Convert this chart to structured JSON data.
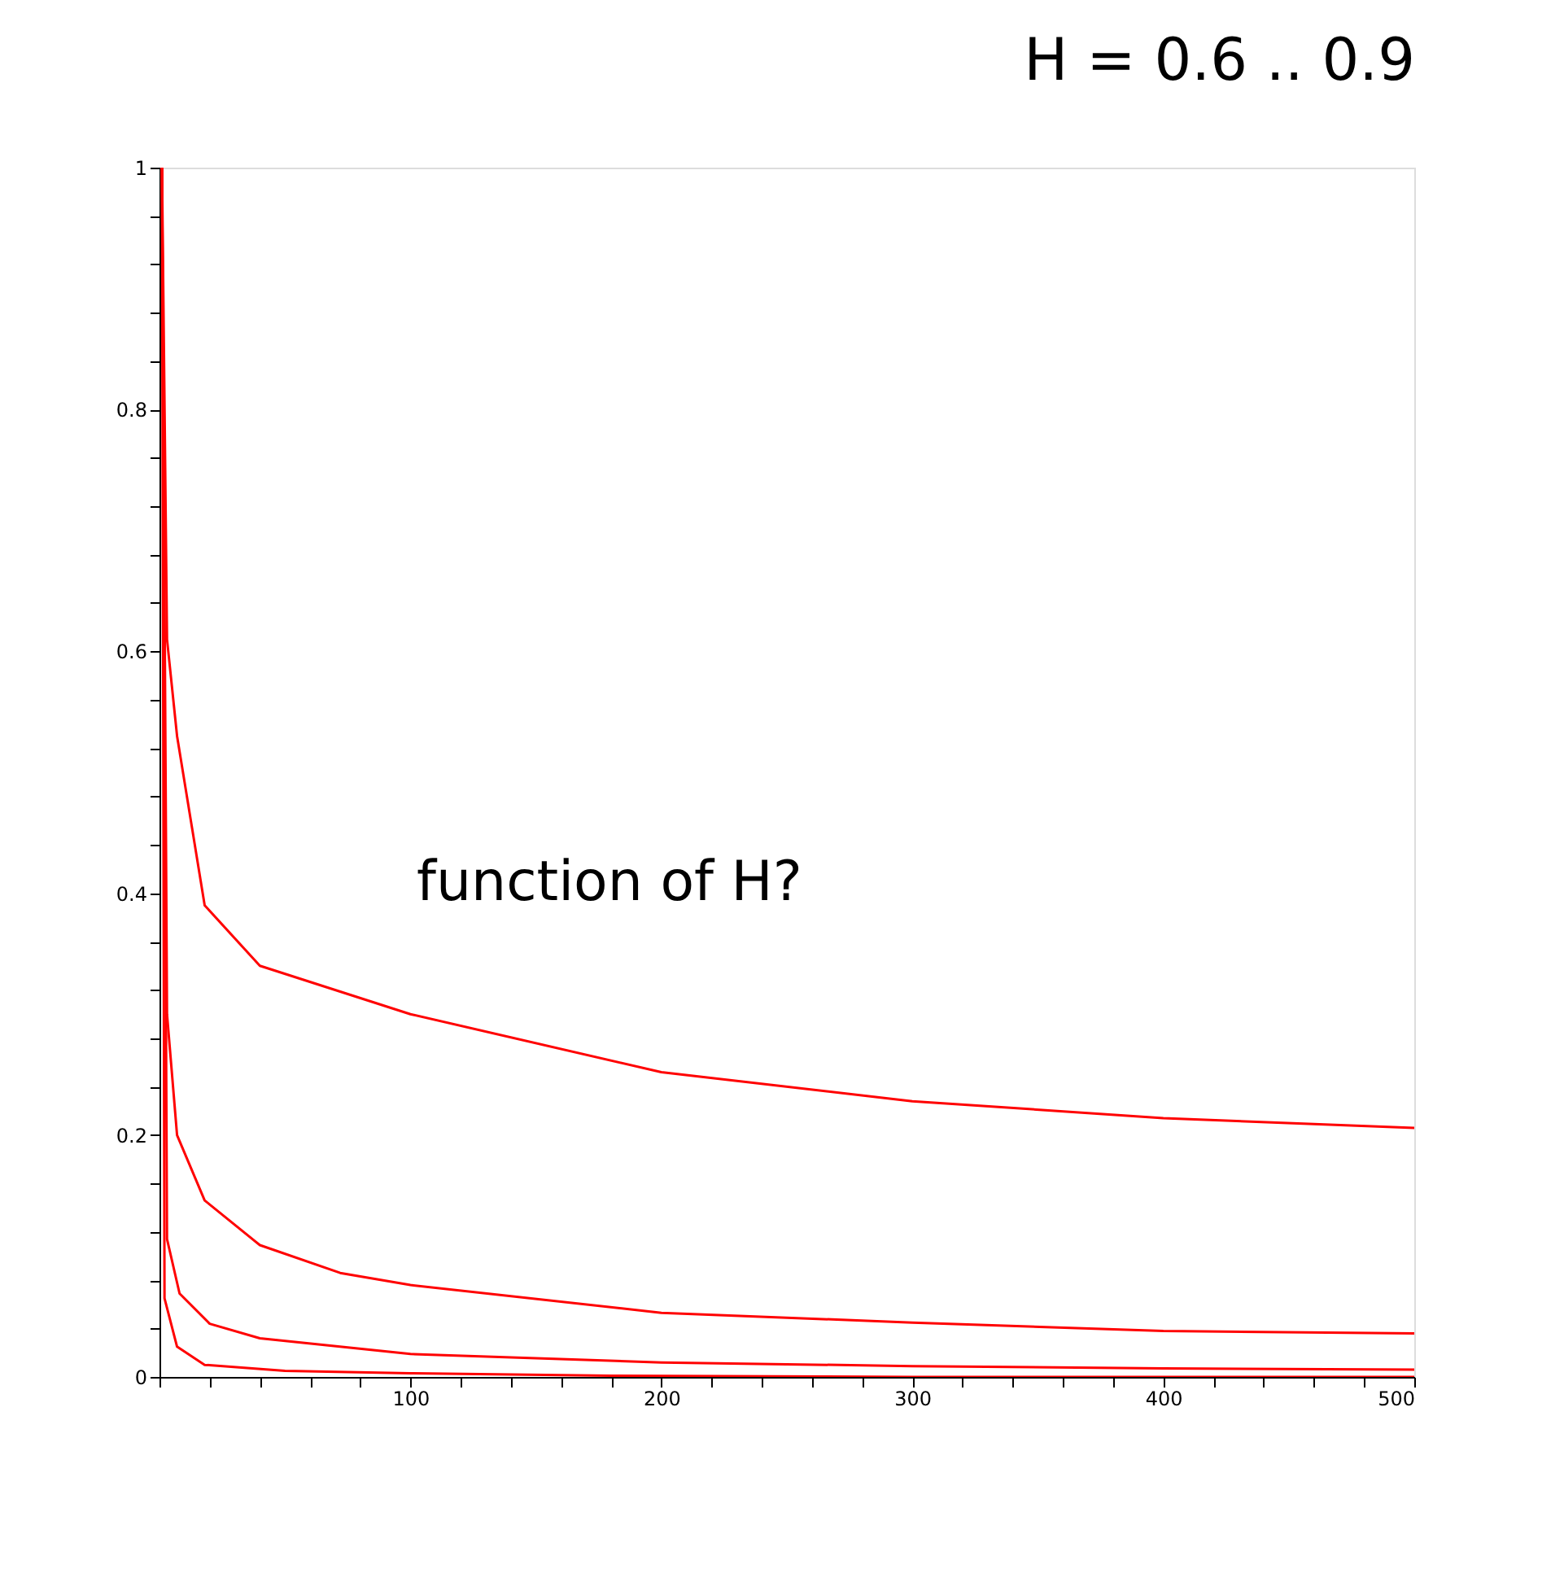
{
  "chart_data": {
    "type": "line",
    "title": "H = 0.6 .. 0.9",
    "annotations": [
      "function of H?"
    ],
    "xlim": [
      0,
      500
    ],
    "ylim": [
      0,
      1
    ],
    "xticks": [
      {
        "value": 0,
        "label": null
      },
      {
        "value": 20,
        "label": null
      },
      {
        "value": 40,
        "label": null
      },
      {
        "value": 60,
        "label": null
      },
      {
        "value": 80,
        "label": null
      },
      100,
      {
        "value": 120,
        "label": null
      },
      {
        "value": 140,
        "label": null
      },
      {
        "value": 160,
        "label": null
      },
      {
        "value": 180,
        "label": null
      },
      200,
      {
        "value": 220,
        "label": null
      },
      {
        "value": 240,
        "label": null
      },
      {
        "value": 260,
        "label": null
      },
      {
        "value": 280,
        "label": null
      },
      300,
      {
        "value": 320,
        "label": null
      },
      {
        "value": 340,
        "label": null
      },
      {
        "value": 360,
        "label": null
      },
      {
        "value": 380,
        "label": null
      },
      400,
      {
        "value": 420,
        "label": null
      },
      {
        "value": 440,
        "label": null
      },
      {
        "value": 460,
        "label": null
      },
      {
        "value": 480,
        "label": null
      },
      500
    ],
    "yticks": [
      0,
      {
        "value": 0.04,
        "label": null
      },
      {
        "value": 0.08,
        "label": null
      },
      {
        "value": 0.12,
        "label": null
      },
      {
        "value": 0.16,
        "label": null
      },
      0.2,
      {
        "value": 0.24,
        "label": null
      },
      {
        "value": 0.28,
        "label": null
      },
      {
        "value": 0.32,
        "label": null
      },
      {
        "value": 0.36,
        "label": null
      },
      0.4,
      {
        "value": 0.44,
        "label": null
      },
      {
        "value": 0.48,
        "label": null
      },
      {
        "value": 0.52,
        "label": null
      },
      {
        "value": 0.56,
        "label": null
      },
      0.6,
      {
        "value": 0.64,
        "label": null
      },
      {
        "value": 0.68,
        "label": null
      },
      {
        "value": 0.72,
        "label": null
      },
      {
        "value": 0.76,
        "label": null
      },
      0.8,
      {
        "value": 0.84,
        "label": null
      },
      {
        "value": 0.88,
        "label": null
      },
      {
        "value": 0.92,
        "label": null
      },
      {
        "value": 0.96,
        "label": null
      },
      1
    ],
    "grid": false,
    "legend": false,
    "marker": "none",
    "line_style": "solid",
    "series": [
      {
        "color": "#ff0000",
        "x": [
          1,
          3,
          7,
          18,
          40,
          100,
          200,
          300,
          400,
          500
        ],
        "values": [
          1,
          0.61,
          0.53,
          0.39,
          0.34,
          0.3,
          0.252,
          0.228,
          0.214,
          0.206
        ]
      },
      {
        "color": "#ff0000",
        "x": [
          1,
          3,
          7,
          18,
          40,
          72,
          100,
          200,
          300,
          400,
          500
        ],
        "values": [
          1,
          0.3,
          0.2,
          0.146,
          0.109,
          0.086,
          0.076,
          0.053,
          0.045,
          0.038,
          0.036
        ]
      },
      {
        "color": "#ff0000",
        "x": [
          1,
          3,
          8,
          20,
          40,
          100,
          200,
          300,
          400,
          500
        ],
        "values": [
          1,
          0.114,
          0.069,
          0.044,
          0.032,
          0.019,
          0.012,
          0.009,
          0.007,
          0.006
        ]
      },
      {
        "color": "#ff0000",
        "x": [
          1,
          2,
          7,
          18,
          50,
          100,
          180,
          300,
          500
        ],
        "values": [
          1,
          0.065,
          0.025,
          0.01,
          0.005,
          0.003,
          0.001,
          0,
          0
        ]
      }
    ]
  }
}
